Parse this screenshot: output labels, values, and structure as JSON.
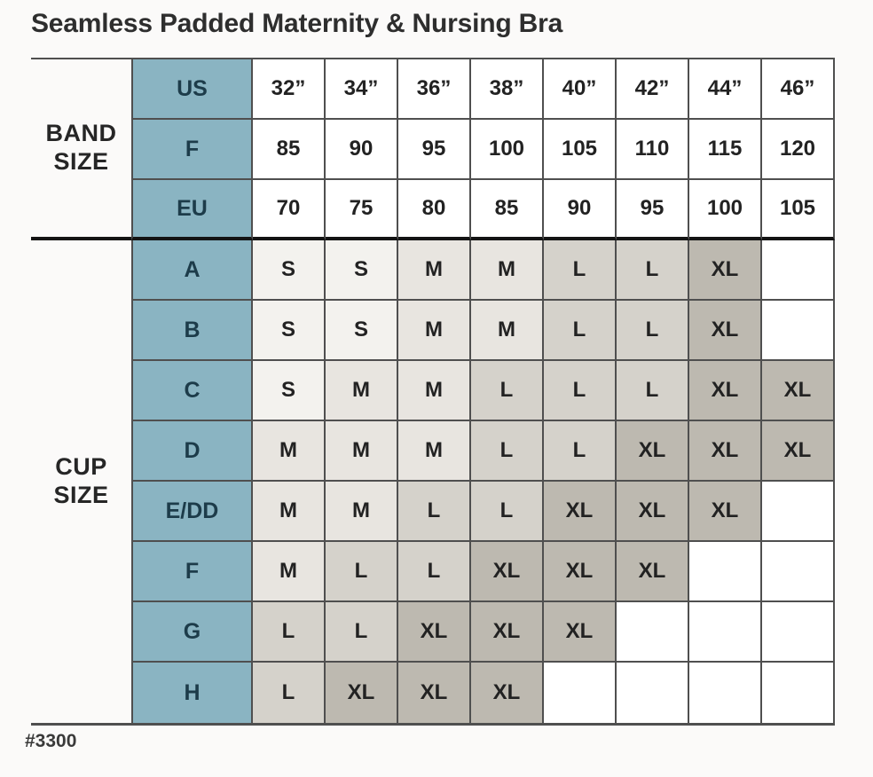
{
  "title": "Seamless Padded Maternity & Nursing Bra",
  "footnote": "#3300",
  "section_labels": {
    "band": [
      "BAND",
      "SIZE"
    ],
    "cup": [
      "CUP",
      "SIZE"
    ]
  },
  "chart_data": {
    "type": "table",
    "title": "Seamless Padded Maternity & Nursing Bra",
    "row_group_headers": [
      "BAND SIZE",
      "CUP SIZE"
    ],
    "band_rows": [
      {
        "label": "US",
        "values": [
          "32”",
          "34”",
          "36”",
          "38”",
          "40”",
          "42”",
          "44”",
          "46”"
        ]
      },
      {
        "label": "F",
        "values": [
          "85",
          "90",
          "95",
          "100",
          "105",
          "110",
          "115",
          "120"
        ]
      },
      {
        "label": "EU",
        "values": [
          "70",
          "75",
          "80",
          "85",
          "90",
          "95",
          "100",
          "105"
        ]
      }
    ],
    "cup_rows": [
      {
        "label": "A",
        "values": [
          "S",
          "S",
          "M",
          "M",
          "L",
          "L",
          "XL",
          ""
        ]
      },
      {
        "label": "B",
        "values": [
          "S",
          "S",
          "M",
          "M",
          "L",
          "L",
          "XL",
          ""
        ]
      },
      {
        "label": "C",
        "values": [
          "S",
          "M",
          "M",
          "L",
          "L",
          "L",
          "XL",
          "XL"
        ]
      },
      {
        "label": "D",
        "values": [
          "M",
          "M",
          "M",
          "L",
          "L",
          "XL",
          "XL",
          "XL"
        ]
      },
      {
        "label": "E/DD",
        "values": [
          "M",
          "M",
          "L",
          "L",
          "XL",
          "XL",
          "XL",
          ""
        ]
      },
      {
        "label": "F",
        "values": [
          "M",
          "L",
          "L",
          "XL",
          "XL",
          "XL",
          "",
          ""
        ]
      },
      {
        "label": "G",
        "values": [
          "L",
          "L",
          "XL",
          "XL",
          "XL",
          "",
          "",
          ""
        ]
      },
      {
        "label": "H",
        "values": [
          "L",
          "XL",
          "XL",
          "XL",
          "",
          "",
          "",
          ""
        ]
      }
    ],
    "legend_shading": {
      "S": "#f3f2ee",
      "M": "#e8e5e0",
      "L": "#d5d2cb",
      "XL": "#bdb9b0",
      "blank": "#ffffff"
    }
  },
  "colors": {
    "header_teal": "#8ab4c2",
    "header_text": "#1d3c4a",
    "grid_line": "#4f4f4f",
    "divider": "#141414"
  }
}
